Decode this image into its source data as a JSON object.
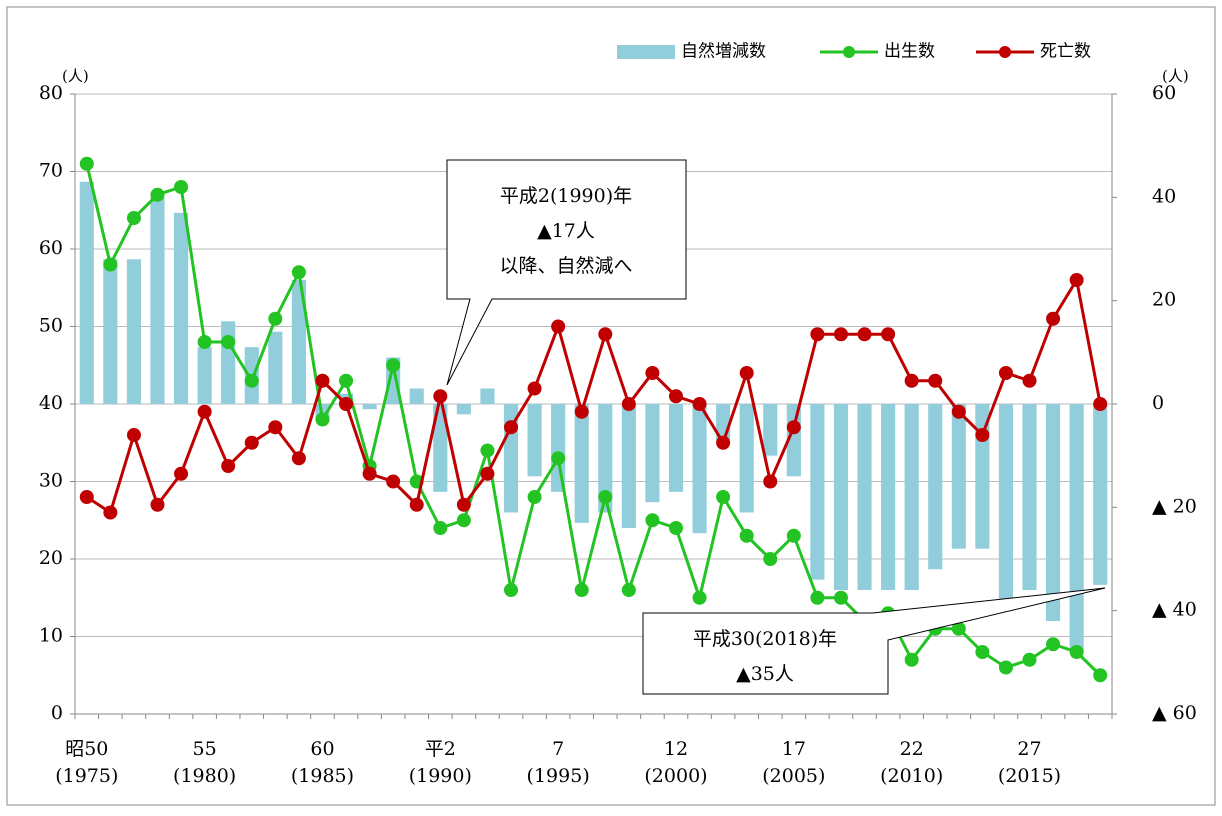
{
  "chart_data": {
    "type": "bar-line",
    "y_unit": "(人)",
    "y2_unit": "(人)",
    "categories": [
      "昭50\n(1975)",
      null,
      null,
      null,
      null,
      "55\n(1980)",
      null,
      null,
      null,
      null,
      "60\n(1985)",
      null,
      null,
      null,
      null,
      "平2\n(1990)",
      null,
      null,
      null,
      null,
      "7\n(1995)",
      null,
      null,
      null,
      null,
      "12\n(2000)",
      null,
      null,
      null,
      null,
      "17\n(2005)",
      null,
      null,
      null,
      null,
      "22\n(2010)",
      null,
      null,
      null,
      null,
      "27\n(2015)",
      null,
      null,
      null
    ],
    "series": [
      {
        "name": "自然増減数",
        "kind": "bar",
        "axis": "y2",
        "color": "#92cddc",
        "values": [
          43,
          28,
          28,
          40,
          37,
          11,
          16,
          11,
          14,
          24,
          -3,
          2,
          -1,
          9,
          3,
          -17,
          -2,
          3,
          -21,
          -14,
          -17,
          -23,
          -21,
          -24,
          -19,
          -17,
          -25,
          -7,
          -21,
          -10,
          -14,
          -34,
          -36,
          -36,
          -36,
          -36,
          -32,
          -28,
          -28,
          -38,
          -36,
          -42,
          -48,
          -35
        ]
      },
      {
        "name": "出生数",
        "kind": "line",
        "color": "#22c322",
        "values": [
          71,
          58,
          64,
          67,
          68,
          48,
          48,
          43,
          51,
          57,
          38,
          43,
          32,
          45,
          30,
          24,
          25,
          34,
          16,
          28,
          33,
          16,
          28,
          16,
          25,
          24,
          15,
          28,
          23,
          20,
          23,
          15,
          15,
          12,
          13,
          7,
          11,
          11,
          8,
          6,
          7,
          9,
          8,
          5
        ]
      },
      {
        "name": "死亡数",
        "kind": "line",
        "color": "#c00000",
        "values": [
          28,
          26,
          36,
          27,
          31,
          39,
          32,
          35,
          37,
          33,
          43,
          40,
          31,
          30,
          27,
          41,
          27,
          31,
          37,
          42,
          50,
          39,
          49,
          40,
          44,
          41,
          40,
          35,
          44,
          30,
          37,
          49,
          49,
          49,
          49,
          43,
          43,
          39,
          36,
          44,
          43,
          51,
          56,
          40
        ]
      }
    ],
    "ylim": [
      0,
      80
    ],
    "yticks": [
      0,
      10,
      20,
      30,
      40,
      50,
      60,
      70,
      80
    ],
    "y2lim": [
      -60,
      60
    ],
    "y2ticks": [
      {
        "value": -60,
        "label": "▲ 60"
      },
      {
        "value": -40,
        "label": "▲ 40"
      },
      {
        "value": -20,
        "label": "▲ 20"
      },
      0,
      20,
      40,
      60
    ],
    "grid": true,
    "legend": "top-right",
    "annotations": [
      {
        "lines": [
          "平成2(1990)年",
          "▲17人",
          "以降、自然減へ"
        ]
      },
      {
        "lines": [
          "平成30(2018)年",
          "▲35人"
        ]
      }
    ]
  }
}
